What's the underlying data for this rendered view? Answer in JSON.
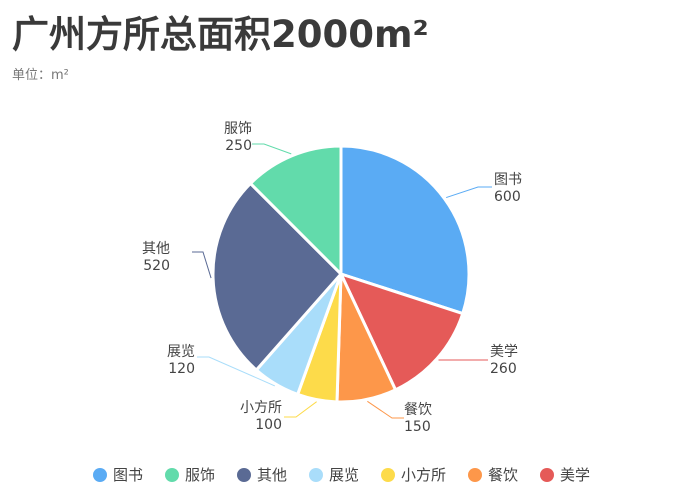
{
  "title": "广州方所总面积2000m²",
  "subtitle": "单位：m²",
  "chart_data": {
    "type": "pie",
    "title": "广州方所总面积2000m²",
    "subtitle": "单位：m²",
    "slices": [
      {
        "name": "图书",
        "value": 600,
        "color": "#5aabf4"
      },
      {
        "name": "美学",
        "value": 260,
        "color": "#e55a58"
      },
      {
        "name": "餐饮",
        "value": 150,
        "color": "#fd974a"
      },
      {
        "name": "小方所",
        "value": 100,
        "color": "#fddb4a"
      },
      {
        "name": "展览",
        "value": 120,
        "color": "#a9ddfa"
      },
      {
        "name": "其他",
        "value": 520,
        "color": "#5a6a94"
      },
      {
        "name": "服饰",
        "value": 250,
        "color": "#62dbab"
      }
    ],
    "legend_order": [
      "图书",
      "服饰",
      "其他",
      "展览",
      "小方所",
      "餐饮",
      "美学"
    ],
    "legend_position": "bottom"
  }
}
